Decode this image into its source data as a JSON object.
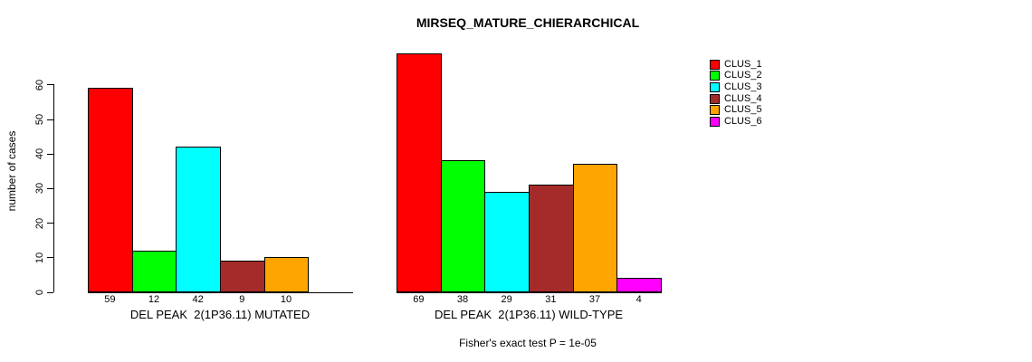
{
  "title": "MIRSEQ_MATURE_CHIERARCHICAL",
  "footer": "Fisher's exact test P = 1e-05",
  "y_axis": {
    "label": "number of cases",
    "ticks": [
      0,
      10,
      20,
      30,
      40,
      50,
      60
    ],
    "range": [
      0,
      60
    ]
  },
  "legend": {
    "position": "right",
    "items": [
      {
        "label": "CLUS_1",
        "color": "#FF0000"
      },
      {
        "label": "CLUS_2",
        "color": "#00FF00"
      },
      {
        "label": "CLUS_3",
        "color": "#00FFFF"
      },
      {
        "label": "CLUS_4",
        "color": "#A52A2A"
      },
      {
        "label": "CLUS_5",
        "color": "#FFA500"
      },
      {
        "label": "CLUS_6",
        "color": "#FF00FF"
      }
    ]
  },
  "chart_data": [
    {
      "type": "bar",
      "xlabel": "DEL PEAK  2(1P36.11) MUTATED",
      "categories": [
        "CLUS_1",
        "CLUS_2",
        "CLUS_3",
        "CLUS_4",
        "CLUS_5",
        "CLUS_6"
      ],
      "values": [
        59,
        12,
        42,
        9,
        10,
        0
      ],
      "value_labels": [
        "59",
        "12",
        "42",
        "9",
        "10",
        ""
      ],
      "colors": [
        "#FF0000",
        "#00FF00",
        "#00FFFF",
        "#A52A2A",
        "#FFA500",
        "#FF00FF"
      ],
      "ylim": [
        0,
        60
      ],
      "grid": false
    },
    {
      "type": "bar",
      "xlabel": "DEL PEAK  2(1P36.11) WILD-TYPE",
      "categories": [
        "CLUS_1",
        "CLUS_2",
        "CLUS_3",
        "CLUS_4",
        "CLUS_5",
        "CLUS_6"
      ],
      "values": [
        69,
        38,
        29,
        31,
        37,
        4
      ],
      "value_labels": [
        "69",
        "38",
        "29",
        "31",
        "37",
        "4"
      ],
      "colors": [
        "#FF0000",
        "#00FF00",
        "#00FFFF",
        "#A52A2A",
        "#FFA500",
        "#FF00FF"
      ],
      "ylim": [
        0,
        60
      ],
      "grid": false
    }
  ]
}
